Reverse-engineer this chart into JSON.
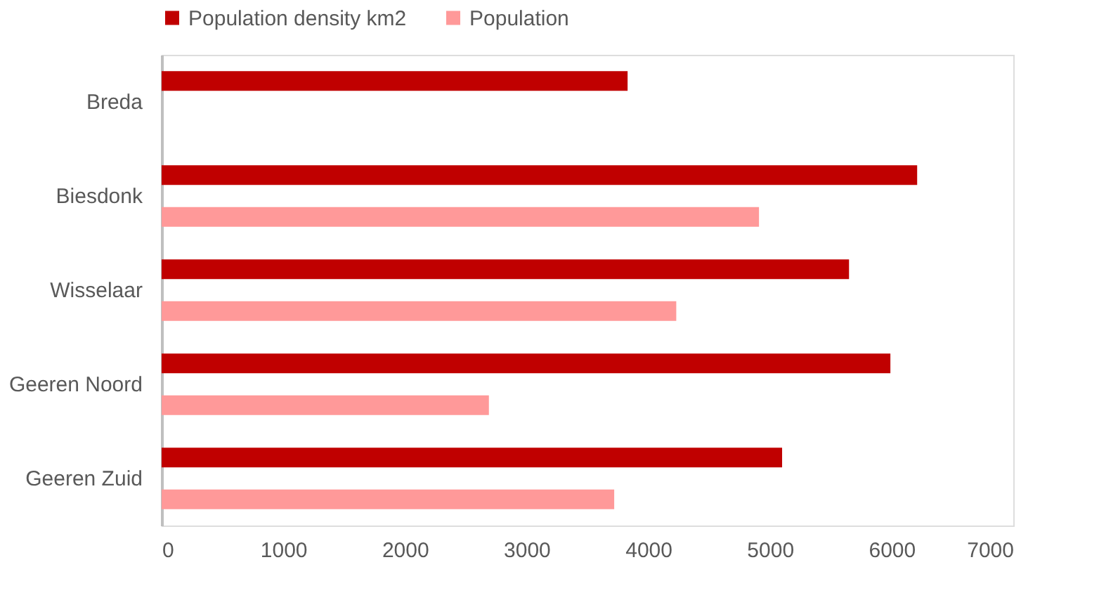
{
  "chart_data": {
    "type": "bar",
    "orientation": "horizontal",
    "categories": [
      "Breda",
      "Biesdonk",
      "Wisselaar",
      "Geeren Noord",
      "Geeren Zuid"
    ],
    "series": [
      {
        "name": "Population density km2",
        "color": "#c00000",
        "values": [
          3830,
          6210,
          5650,
          5990,
          5100
        ]
      },
      {
        "name": "Population",
        "color": "#ff9999",
        "values": [
          null,
          4910,
          4230,
          2690,
          3720
        ]
      }
    ],
    "xlim": [
      0,
      7000
    ],
    "xticks": [
      0,
      1000,
      2000,
      3000,
      4000,
      5000,
      6000,
      7000
    ],
    "grid": false,
    "legend": "top"
  }
}
